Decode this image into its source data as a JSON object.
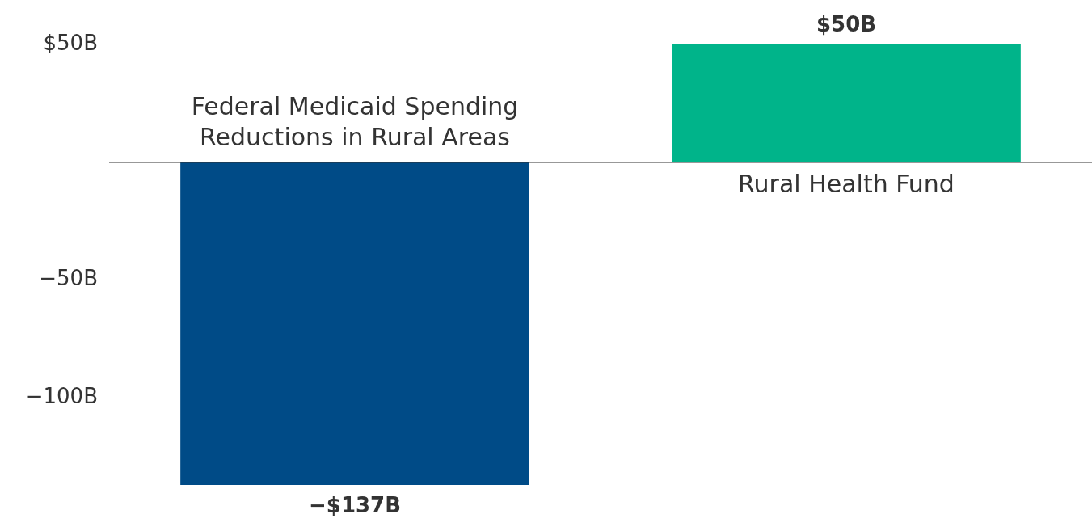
{
  "chart_data": {
    "type": "bar",
    "categories": [
      "Federal Medicaid Spending Reductions in Rural Areas",
      "Rural Health Fund"
    ],
    "values": [
      -137,
      50
    ],
    "colors": [
      "#004b87",
      "#00b48a"
    ],
    "value_labels": [
      "−$137B",
      "$50B"
    ],
    "ylim": [
      -137,
      50
    ],
    "yticks": [
      {
        "value": -100,
        "label": "−100B"
      },
      {
        "value": -50,
        "label": "−50B"
      },
      {
        "value": 50,
        "label": "$50B"
      }
    ],
    "ref_lines": [
      {
        "axis": "y",
        "value": 0,
        "color": "#333333"
      }
    ],
    "grid": false,
    "legend": false
  }
}
